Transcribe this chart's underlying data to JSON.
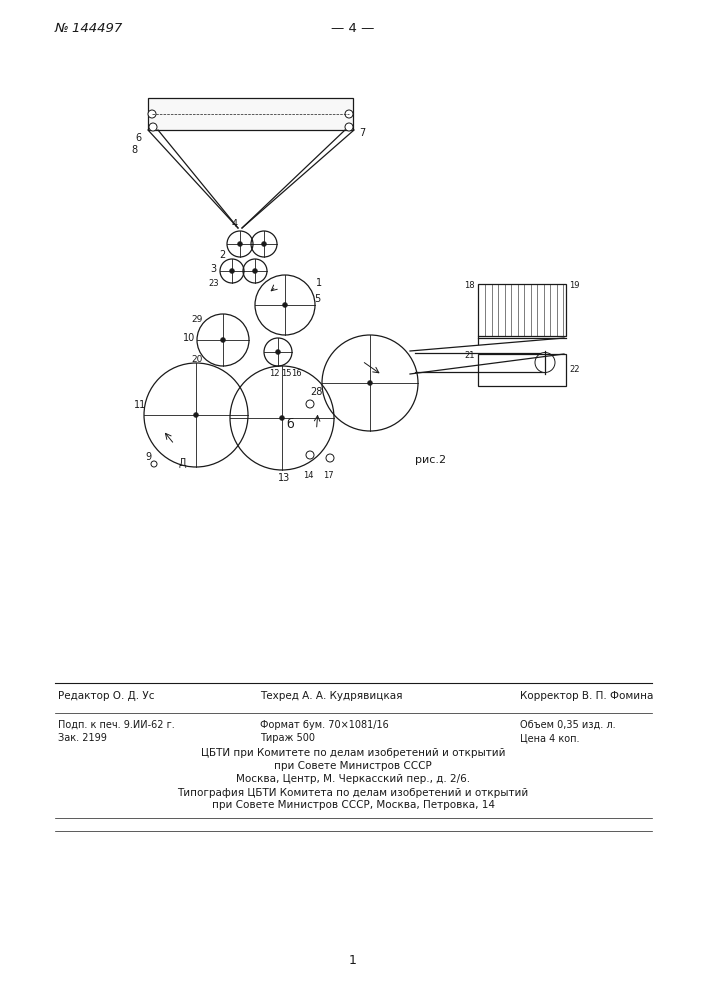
{
  "bg_color": "#ffffff",
  "line_color": "#1a1a1a",
  "header_patent": "№ 144497",
  "header_page": "— 4 —",
  "footer_line1_left": "Редактор О. Д. Ус",
  "footer_line1_mid": "Техред А. А. Кудрявицкая",
  "footer_line1_right": "Корректор В. П. Фомина",
  "footer_line2_left": "Подп. к печ. 9.ИИ-62 г.",
  "footer_line2_mid": "Формат бум. 70×1081/16",
  "footer_line2_right": "Объем 0,35 изд. л.",
  "footer_line3_left": "Зак. 2199",
  "footer_line3_mid": "Тираж 500",
  "footer_line3_right": "Цена 4 коп.",
  "footer_cbti1": "ЦБТИ при Комитете по делам изобретений и открытий",
  "footer_cbti2": "при Совете Министров СССР",
  "footer_cbti3": "Москва, Центр, М. Черкасский пер., д. 2/6.",
  "footer_typo1": "Типография ЦБТИ Комитета по делам изобретений и открытий",
  "footer_typo2": "при Совете Министров СССР, Москва, Петровка, 14",
  "page_number": "1",
  "fig_label": "рис.2"
}
